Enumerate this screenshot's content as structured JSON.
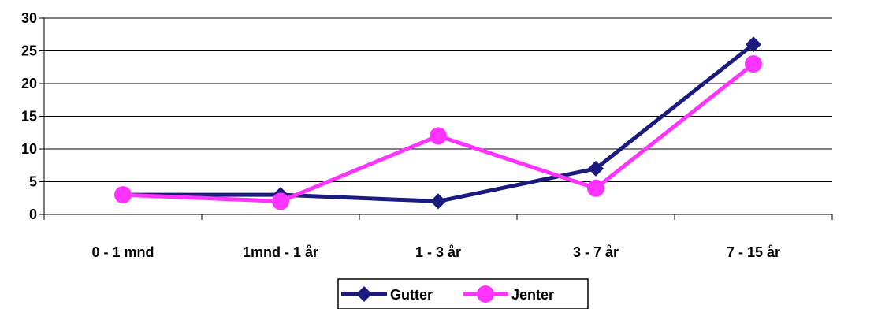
{
  "chart_data": {
    "type": "line",
    "title": "",
    "xlabel": "",
    "ylabel": "",
    "categories": [
      "0 - 1 mnd",
      "1mnd - 1 år",
      "1 - 3 år",
      "3 - 7 år",
      "7 - 15 år"
    ],
    "series": [
      {
        "name": "Gutter",
        "values": [
          3,
          3,
          2,
          7,
          26
        ],
        "color": "#1a1a80",
        "marker": "diamond"
      },
      {
        "name": "Jenter",
        "values": [
          3,
          2,
          12,
          4,
          23
        ],
        "color": "#ff33ff",
        "marker": "circle"
      }
    ],
    "ylim": [
      0,
      30
    ],
    "yticks": [
      0,
      5,
      10,
      15,
      20,
      25,
      30
    ],
    "grid": "horizontal",
    "legend_position": "bottom-center"
  }
}
